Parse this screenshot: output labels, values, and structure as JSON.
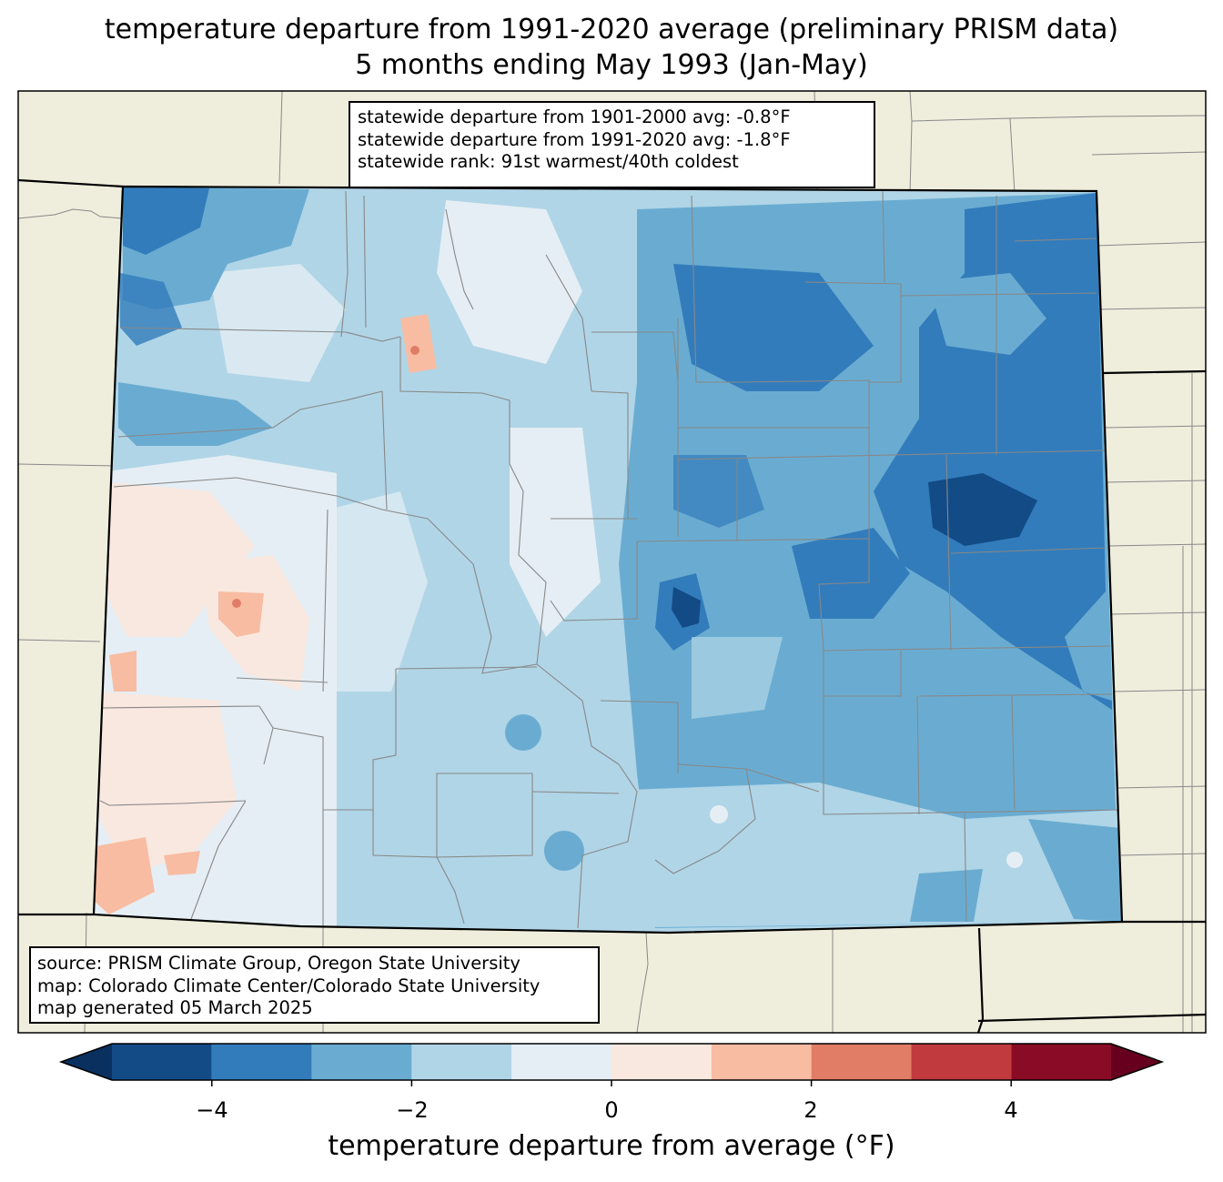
{
  "title": {
    "line1": "temperature departure from 1991-2020 average (preliminary PRISM data)",
    "line2": "5 months ending May 1993 (Jan-May)"
  },
  "stats": {
    "line1": "statewide departure from 1901-2000 avg: -0.8°F",
    "line2": "statewide departure from 1991-2020 avg: -1.8°F",
    "line3": "statewide rank: 91st warmest/40th coldest"
  },
  "source": {
    "line1": "source: PRISM Climate Group, Oregon State University",
    "line2": "map: Colorado Climate Center/Colorado State University",
    "line3": "map generated 05 March 2025"
  },
  "colorbar": {
    "label": "temperature departure from average (°F)",
    "ticks": [
      "−4",
      "−2",
      "0",
      "2",
      "4"
    ],
    "min": -5,
    "max": 5,
    "bins": [
      {
        "from": -5,
        "to": -4,
        "color": "#134b87"
      },
      {
        "from": -4,
        "to": -3,
        "color": "#327cbb"
      },
      {
        "from": -3,
        "to": -2,
        "color": "#6aacd1"
      },
      {
        "from": -2,
        "to": -1,
        "color": "#b0d5e7"
      },
      {
        "from": -1,
        "to": 0,
        "color": "#e5eef4"
      },
      {
        "from": 0,
        "to": 1,
        "color": "#f9e8df"
      },
      {
        "from": 1,
        "to": 2,
        "color": "#f8bca2"
      },
      {
        "from": 2,
        "to": 3,
        "color": "#e17d66"
      },
      {
        "from": 3,
        "to": 4,
        "color": "#c03a3e"
      },
      {
        "from": 4,
        "to": 5,
        "color": "#8a0b25"
      }
    ],
    "under_color": "#0a3060",
    "over_color": "#67001f"
  },
  "colors": {
    "land": "#efeedd",
    "county_lines": "#888888",
    "state_lines": "#000000"
  }
}
